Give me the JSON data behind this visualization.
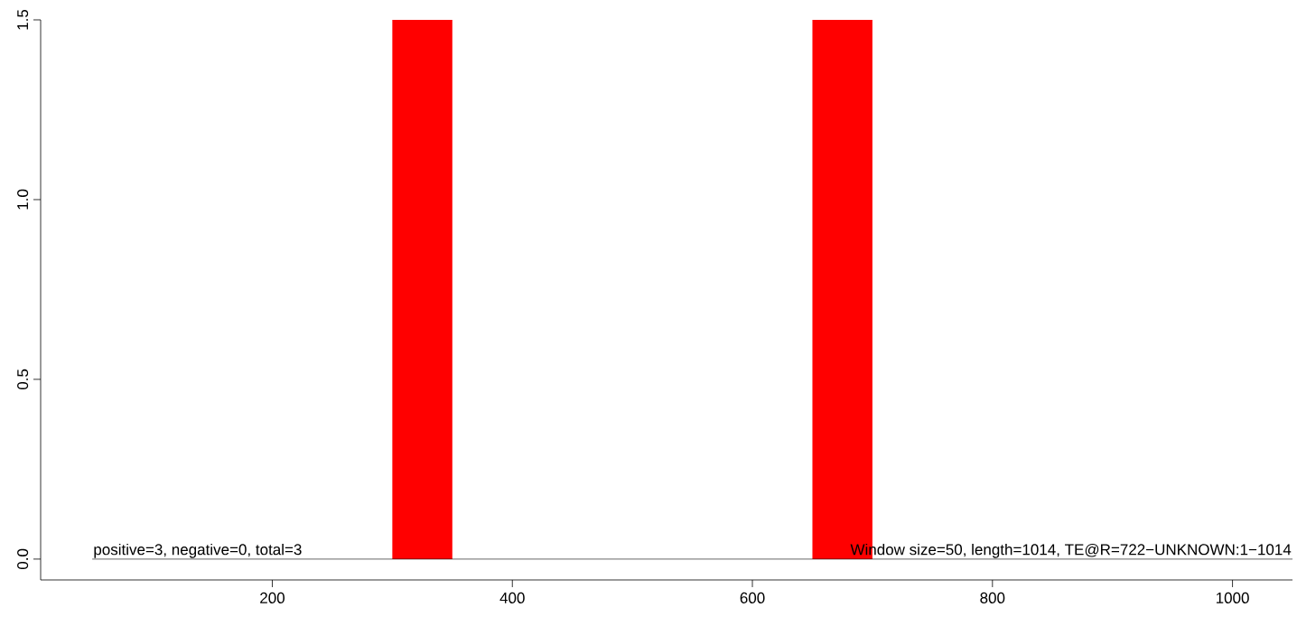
{
  "chart_data": {
    "type": "histogram",
    "bins": [
      300,
      350,
      400,
      450,
      500,
      550,
      600,
      650,
      700
    ],
    "values": [
      1.5,
      0,
      0,
      0,
      0,
      0,
      0,
      1.5
    ],
    "color": "#ff0000",
    "xlim": [
      7,
      1050
    ],
    "ylim": [
      -0.058,
      1.5
    ],
    "xticks": [
      200,
      400,
      600,
      800,
      1000
    ],
    "yticks": [
      {
        "value": 0,
        "label": "0.0"
      },
      {
        "value": 0.5,
        "label": "0.5"
      },
      {
        "value": 1,
        "label": "1.0"
      },
      {
        "value": 1.5,
        "label": "1.5"
      }
    ],
    "ref_lines": [
      {
        "axis": "y",
        "value": 0,
        "color": "#000000"
      }
    ],
    "annotations": [
      "positive=3, negative=0, total=3",
      "Window size=50, length=1014, TE@R=722−UNKNOWN:1−1014"
    ],
    "line_style": "solid"
  }
}
